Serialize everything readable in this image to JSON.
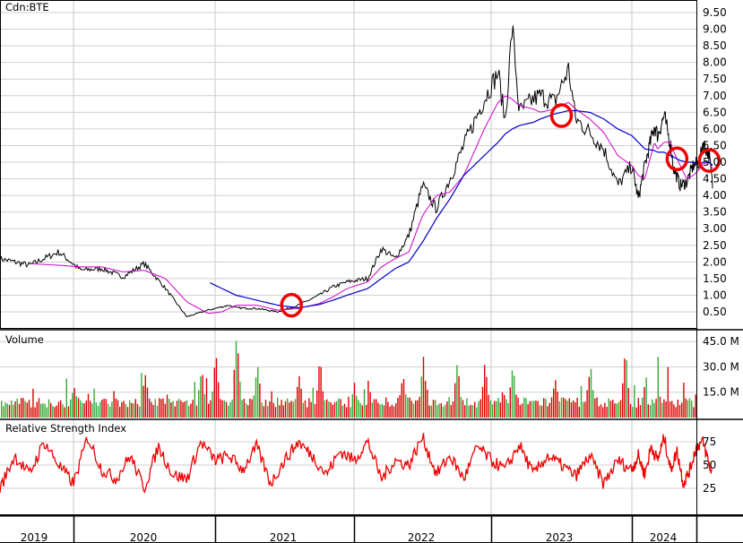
{
  "chart_data": [
    {
      "type": "line",
      "title": "Cdn:BTE",
      "ylim": [
        0,
        9.8
      ],
      "y_ticks": [
        "0.50",
        "1.00",
        "1.50",
        "2.00",
        "2.50",
        "3.00",
        "3.50",
        "4.00",
        "4.50",
        "5.00",
        "5.50",
        "6.00",
        "6.50",
        "7.00",
        "7.50",
        "8.00",
        "8.50",
        "9.00",
        "9.50"
      ],
      "grid": true,
      "x_labels": [
        "2019",
        "2020",
        "2021",
        "2022",
        "2023",
        "2024"
      ],
      "price_colors": {
        "price": "#000000",
        "ma_short": "#cc00cc",
        "ma_long": "#0000cc",
        "marker": "#ee0000"
      },
      "x": [
        2018.5,
        2018.7,
        2018.9,
        2019.05,
        2019.2,
        2019.35,
        2019.5,
        2019.65,
        2019.8,
        2019.95,
        2020.05,
        2020.1,
        2020.15,
        2020.3,
        2020.45,
        2020.6,
        2020.75,
        2020.85,
        2020.95,
        2021.1,
        2021.2,
        2021.3,
        2021.4,
        2021.5,
        2021.6,
        2021.7,
        2021.8,
        2021.95,
        2022.05,
        2022.1,
        2022.15,
        2022.2,
        2022.3,
        2022.35,
        2022.45,
        2022.55,
        2022.6,
        2022.7,
        2022.8,
        2022.9,
        2023.0,
        2023.1,
        2023.2,
        2023.35,
        2023.4,
        2023.5,
        2023.6,
        2023.65,
        2023.75,
        2023.85,
        2023.95,
        2024.05,
        2024.1,
        2024.2,
        2024.25
      ],
      "price": [
        2.1,
        1.9,
        2.3,
        1.75,
        1.8,
        1.55,
        1.95,
        1.2,
        0.35,
        0.55,
        0.65,
        0.7,
        0.62,
        0.6,
        0.5,
        0.7,
        1.0,
        1.25,
        1.4,
        1.5,
        2.4,
        2.1,
        2.8,
        4.3,
        3.6,
        4.5,
        5.5,
        6.9,
        7.7,
        6.2,
        9.1,
        6.5,
        6.9,
        7.0,
        6.8,
        7.8,
        6.3,
        5.9,
        5.4,
        4.3,
        4.9,
        3.9,
        4.9,
        6.1,
        5.8,
        6.4,
        5.5,
        4.8,
        4.3,
        4.4,
        4.9,
        5.0,
        5.6,
        5.2,
        4.3
      ],
      "ma_short": [
        null,
        1.95,
        1.9,
        1.85,
        1.85,
        1.7,
        1.75,
        1.5,
        0.8,
        0.45,
        0.5,
        0.6,
        0.7,
        0.7,
        0.55,
        0.6,
        0.75,
        0.95,
        1.2,
        1.4,
        1.85,
        2.1,
        2.3,
        3.4,
        4.0,
        4.1,
        4.6,
        6.0,
        6.8,
        7.0,
        6.9,
        6.7,
        6.6,
        6.5,
        6.6,
        6.8,
        6.6,
        6.3,
        5.9,
        5.2,
        4.9,
        4.6,
        4.5,
        5.6,
        5.4,
        5.6,
        5.6,
        5.3,
        4.9,
        4.5,
        4.6,
        4.8,
        4.95,
        5.0,
        4.8
      ],
      "ma_long": [
        null,
        null,
        null,
        null,
        null,
        null,
        null,
        null,
        null,
        1.4,
        1.2,
        1.1,
        1.0,
        0.85,
        0.7,
        0.62,
        0.72,
        0.85,
        1.0,
        1.2,
        1.5,
        1.8,
        2.0,
        2.6,
        3.3,
        3.9,
        4.6,
        5.2,
        5.6,
        5.85,
        6.0,
        6.1,
        6.2,
        6.3,
        6.45,
        6.55,
        6.55,
        6.5,
        6.3,
        6.0,
        5.8,
        5.6,
        5.4,
        5.35,
        5.3,
        5.3,
        5.2,
        5.15,
        5.05,
        5.0,
        5.0,
        4.95,
        5.0,
        5.0,
        4.9
      ],
      "markers": [
        {
          "x": 2020.55,
          "y": 0.7
        },
        {
          "x": 2022.5,
          "y": 6.4
        },
        {
          "x": 2023.7,
          "y": 5.1
        },
        {
          "x": 2024.2,
          "y": 5.05
        }
      ]
    },
    {
      "type": "bar",
      "title": "Volume",
      "ylim": [
        0,
        52
      ],
      "y_ticks": [
        "15.0 M",
        "30.0 M",
        "45.0 M"
      ],
      "colors": {
        "up": "#33aa33",
        "down": "#dd0000"
      },
      "peaks": [
        {
          "x": 2019.0,
          "y": 18
        },
        {
          "x": 2019.5,
          "y": 25
        },
        {
          "x": 2019.9,
          "y": 28
        },
        {
          "x": 2020.0,
          "y": 36
        },
        {
          "x": 2020.15,
          "y": 48
        },
        {
          "x": 2020.3,
          "y": 30
        },
        {
          "x": 2020.6,
          "y": 22
        },
        {
          "x": 2020.75,
          "y": 32
        },
        {
          "x": 2021.0,
          "y": 18
        },
        {
          "x": 2021.35,
          "y": 24
        },
        {
          "x": 2021.5,
          "y": 35
        },
        {
          "x": 2021.75,
          "y": 32
        },
        {
          "x": 2021.95,
          "y": 30
        },
        {
          "x": 2022.15,
          "y": 29
        },
        {
          "x": 2022.45,
          "y": 22
        },
        {
          "x": 2022.7,
          "y": 29
        },
        {
          "x": 2022.95,
          "y": 38
        },
        {
          "x": 2023.2,
          "y": 28
        },
        {
          "x": 2023.4,
          "y": 35
        },
        {
          "x": 2023.55,
          "y": 26
        },
        {
          "x": 2023.8,
          "y": 22
        },
        {
          "x": 2024.0,
          "y": 24
        },
        {
          "x": 2024.2,
          "y": 28
        },
        {
          "x": 2024.3,
          "y": 20
        }
      ]
    },
    {
      "type": "line",
      "title": "Relative Strength Index",
      "ylim": [
        0,
        100
      ],
      "y_ticks": [
        "25",
        "50",
        "75"
      ],
      "color": "#ee0000",
      "x": [
        2018.5,
        2018.6,
        2018.7,
        2018.8,
        2018.9,
        2019.0,
        2019.1,
        2019.2,
        2019.3,
        2019.4,
        2019.5,
        2019.6,
        2019.7,
        2019.8,
        2019.9,
        2020.0,
        2020.1,
        2020.2,
        2020.3,
        2020.4,
        2020.5,
        2020.6,
        2020.7,
        2020.8,
        2020.9,
        2021.0,
        2021.1,
        2021.2,
        2021.3,
        2021.4,
        2021.5,
        2021.6,
        2021.7,
        2021.8,
        2021.9,
        2022.0,
        2022.1,
        2022.2,
        2022.3,
        2022.4,
        2022.5,
        2022.6,
        2022.7,
        2022.8,
        2022.9,
        2023.0,
        2023.1,
        2023.2,
        2023.3,
        2023.4,
        2023.5,
        2023.6,
        2023.7,
        2023.8,
        2023.9,
        2024.0,
        2024.1,
        2024.2,
        2024.25
      ],
      "values": [
        25,
        60,
        40,
        75,
        50,
        30,
        80,
        45,
        35,
        60,
        25,
        70,
        40,
        35,
        75,
        55,
        60,
        45,
        70,
        30,
        55,
        75,
        60,
        40,
        65,
        55,
        75,
        35,
        55,
        50,
        80,
        40,
        60,
        35,
        70,
        55,
        45,
        72,
        40,
        60,
        50,
        38,
        60,
        30,
        55,
        45,
        60,
        40,
        70,
        55,
        80,
        45,
        65,
        30,
        45,
        70,
        75,
        50,
        40
      ]
    }
  ]
}
